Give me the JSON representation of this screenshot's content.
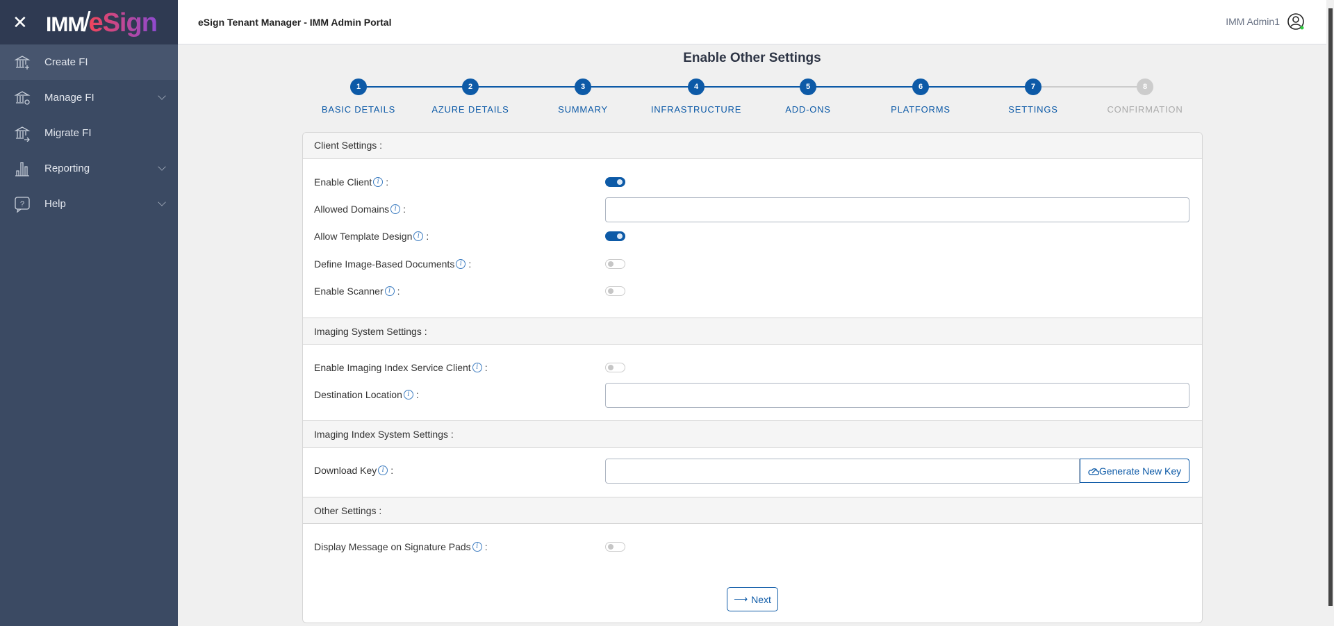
{
  "sidebar": {
    "close_icon": "close-icon",
    "logo": {
      "part1": "IMM",
      "part2": "eSign"
    },
    "items": [
      {
        "label": "Create FI",
        "icon": "bank-plus-icon",
        "active": true,
        "expandable": false
      },
      {
        "label": "Manage FI",
        "icon": "bank-gear-icon",
        "active": false,
        "expandable": true
      },
      {
        "label": "Migrate FI",
        "icon": "bank-arrow-icon",
        "active": false,
        "expandable": false
      },
      {
        "label": "Reporting",
        "icon": "bar-chart-icon",
        "active": false,
        "expandable": true
      },
      {
        "label": "Help",
        "icon": "help-bubble-icon",
        "active": false,
        "expandable": true
      }
    ]
  },
  "header": {
    "title": "eSign Tenant Manager - IMM Admin Portal",
    "user": "IMM Admin1",
    "status_color": "#2ecc40"
  },
  "page_title": "Enable Other Settings",
  "stepper": {
    "current": 7,
    "steps": [
      {
        "num": "1",
        "label": "BASIC DETAILS"
      },
      {
        "num": "2",
        "label": "AZURE DETAILS"
      },
      {
        "num": "3",
        "label": "SUMMARY"
      },
      {
        "num": "4",
        "label": "INFRASTRUCTURE"
      },
      {
        "num": "5",
        "label": "ADD-ONS"
      },
      {
        "num": "6",
        "label": "PLATFORMS"
      },
      {
        "num": "7",
        "label": "SETTINGS"
      },
      {
        "num": "8",
        "label": "CONFIRMATION"
      }
    ]
  },
  "sections": {
    "client": {
      "title": "Client Settings :",
      "enable_client": {
        "label": "Enable Client",
        "on": true
      },
      "allowed_domains": {
        "label": "Allowed Domains",
        "value": ""
      },
      "template_design": {
        "label": "Allow Template Design",
        "on": true
      },
      "image_docs": {
        "label": "Define Image-Based Documents",
        "on": false
      },
      "scanner": {
        "label": "Enable Scanner",
        "on": false
      }
    },
    "imaging": {
      "title": "Imaging System Settings :",
      "index_client": {
        "label": "Enable Imaging Index Service Client",
        "on": false
      },
      "destination": {
        "label": "Destination Location",
        "value": ""
      }
    },
    "imaging_index": {
      "title": "Imaging Index System Settings :",
      "download_key": {
        "label": "Download Key",
        "value": ""
      },
      "generate_label": "Generate New Key"
    },
    "other": {
      "title": "Other Settings :",
      "sig_pads": {
        "label": "Display Message on Signature Pads",
        "on": false
      }
    }
  },
  "colon": ":",
  "info_glyph": "i",
  "next_label": "Next",
  "colors": {
    "primary": "#0d5aa7",
    "sidebar": "#3b4a63",
    "sidebar_top": "#2f3a52"
  }
}
